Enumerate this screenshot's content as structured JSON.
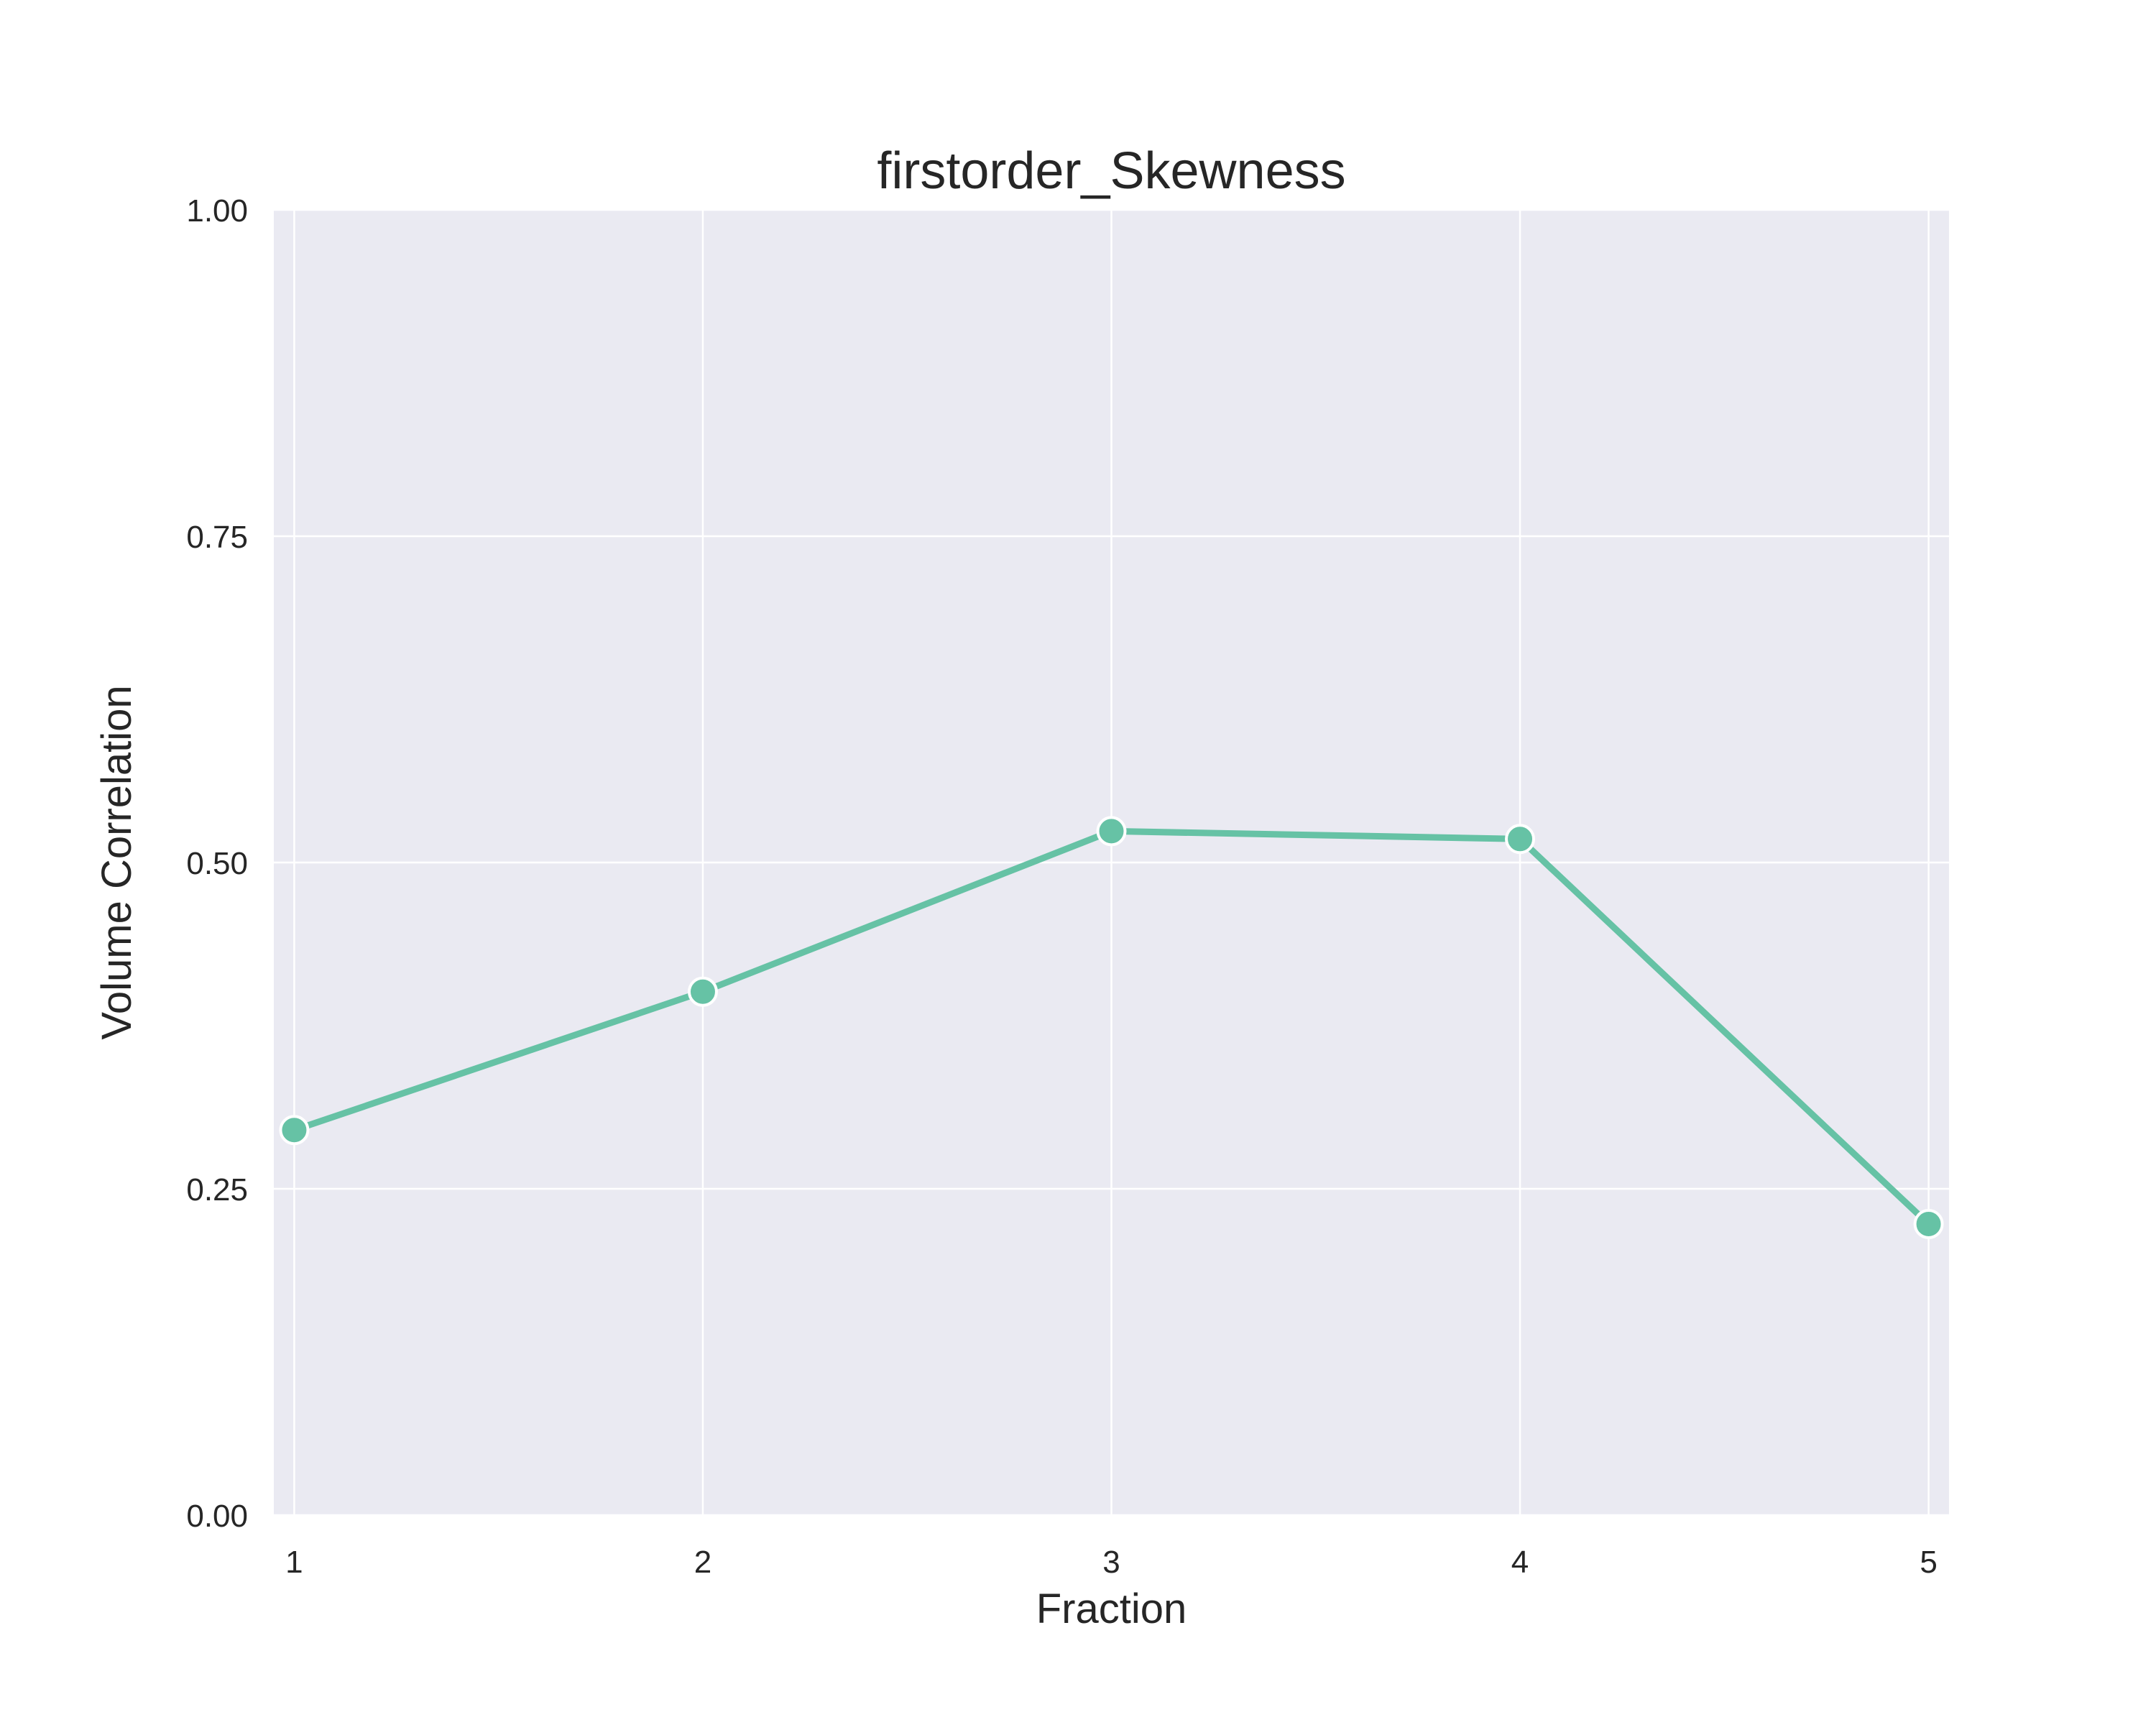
{
  "chart_data": {
    "type": "line",
    "title": "firstorder_Skewness",
    "xlabel": "Fraction",
    "ylabel": "Volume Correlation",
    "x": [
      1,
      2,
      3,
      4,
      5
    ],
    "x_tick_labels": [
      "1",
      "2",
      "3",
      "4",
      "5"
    ],
    "y_tick_labels": [
      "0.00",
      "0.25",
      "0.50",
      "0.75",
      "1.00"
    ],
    "y_ticks": [
      0,
      0.25,
      0.5,
      0.75,
      1.0
    ],
    "xlim": [
      0.95,
      5.05
    ],
    "ylim": [
      0,
      1
    ],
    "grid": true,
    "series": [
      {
        "values": [
          0.295,
          0.401,
          0.524,
          0.518,
          0.223
        ],
        "color": "#66c2a5",
        "marker": "circle"
      }
    ]
  },
  "colors": {
    "plot_background": "#eaeaf2",
    "grid": "#ffffff",
    "text": "#262626",
    "line": "#66c2a5"
  }
}
